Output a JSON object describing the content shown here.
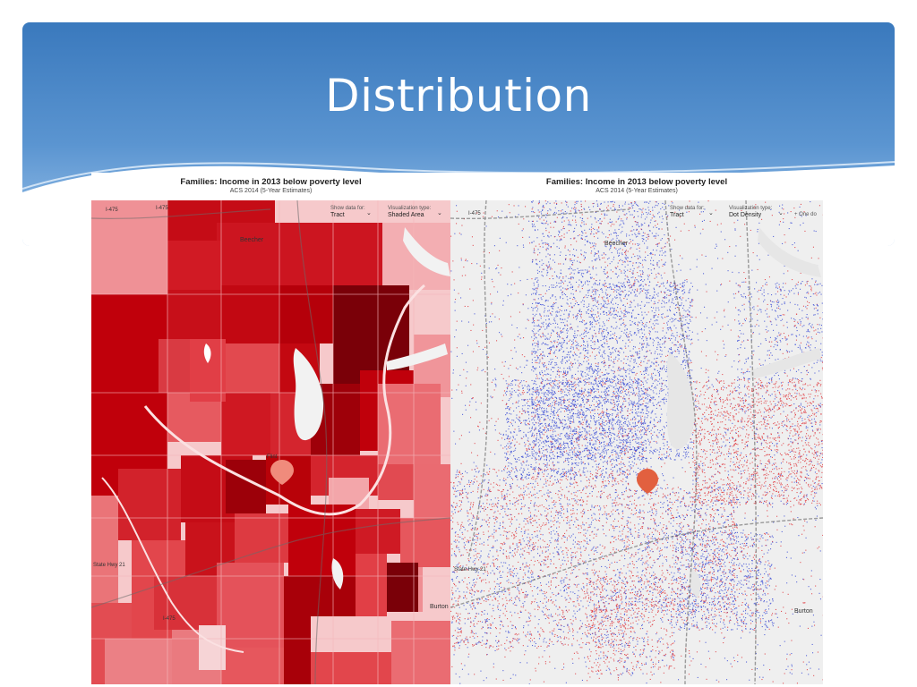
{
  "slide": {
    "title": "Distribution"
  },
  "maps": [
    {
      "title": "Families: Income in 2013 below poverty level",
      "subtitle": "ACS 2014 (5-Year Estimates)",
      "show_data_label": "Show data for:",
      "show_data_value": "Tract",
      "viz_label": "Visualization type:",
      "viz_value": "Shaded Area",
      "labels": {
        "city_north": "Beecher",
        "city_se": "Burton",
        "hwy_nw1": "I-475",
        "hwy_nw2": "I-475",
        "road_w": "State Hwy 21",
        "road_sw": "I-475",
        "road_mid": "Flint"
      },
      "colors": {
        "light": "#f2a7ab",
        "mid": "#e0393f",
        "dark": "#c0000b",
        "darkest": "#7a0008"
      }
    },
    {
      "title": "Families: Income in 2013 below poverty level",
      "subtitle": "ACS 2014 (5-Year Estimates)",
      "show_data_label": "Show data for:",
      "show_data_value": "Tract",
      "viz_label": "Visualization type:",
      "viz_value": "Dot Density",
      "extra_label": "+ One do",
      "labels": {
        "city_north": "Beecher",
        "city_se": "Burton",
        "hwy_nw": "I-475",
        "road_w": "State Hwy 21"
      },
      "colors": {
        "above": "#3d4fd6",
        "below": "#e0393f"
      }
    }
  ]
}
